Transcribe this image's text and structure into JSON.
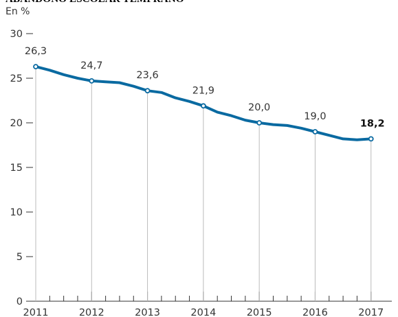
{
  "title": "ABANDONO ESCOLAR TEMPRANO",
  "unit": "En %",
  "colors": {
    "line": "#0a6aa1",
    "marker_fill": "#ffffff",
    "axis": "#333333",
    "guide": "#bbbbbb"
  },
  "chart_data": {
    "type": "line",
    "title": "ABANDONO ESCOLAR TEMPRANO",
    "ylabel": "En %",
    "ylim": [
      0,
      30
    ],
    "yticks": [
      0,
      5,
      10,
      15,
      20,
      25,
      30
    ],
    "xlim": [
      2011,
      2017.2
    ],
    "xticks": [
      "2011",
      "2012",
      "2013",
      "2014",
      "2015",
      "2016",
      "2017"
    ],
    "grid": false,
    "series": [
      {
        "x": [
          2011,
          2011.25,
          2011.5,
          2011.75,
          2012,
          2012.25,
          2012.5,
          2012.75,
          2013,
          2013.25,
          2013.5,
          2013.75,
          2014,
          2014.25,
          2014.5,
          2014.75,
          2015,
          2015.25,
          2015.5,
          2015.75,
          2016,
          2016.25,
          2016.5,
          2016.75,
          2017
        ],
        "values": [
          26.3,
          25.9,
          25.4,
          25.0,
          24.7,
          24.6,
          24.5,
          24.1,
          23.6,
          23.4,
          22.8,
          22.4,
          21.9,
          21.2,
          20.8,
          20.3,
          20.0,
          19.8,
          19.7,
          19.4,
          19.0,
          18.6,
          18.2,
          18.1,
          18.2
        ]
      }
    ],
    "annotations": [
      {
        "x": 2011,
        "y": 26.3,
        "label": "26,3",
        "bold": false
      },
      {
        "x": 2012,
        "y": 24.7,
        "label": "24,7",
        "bold": false
      },
      {
        "x": 2013,
        "y": 23.6,
        "label": "23,6",
        "bold": false
      },
      {
        "x": 2014,
        "y": 21.9,
        "label": "21,9",
        "bold": false
      },
      {
        "x": 2015,
        "y": 20.0,
        "label": "20,0",
        "bold": false
      },
      {
        "x": 2016,
        "y": 19.0,
        "label": "19,0",
        "bold": false
      },
      {
        "x": 2017,
        "y": 18.2,
        "label": "18,2",
        "bold": true
      }
    ]
  }
}
